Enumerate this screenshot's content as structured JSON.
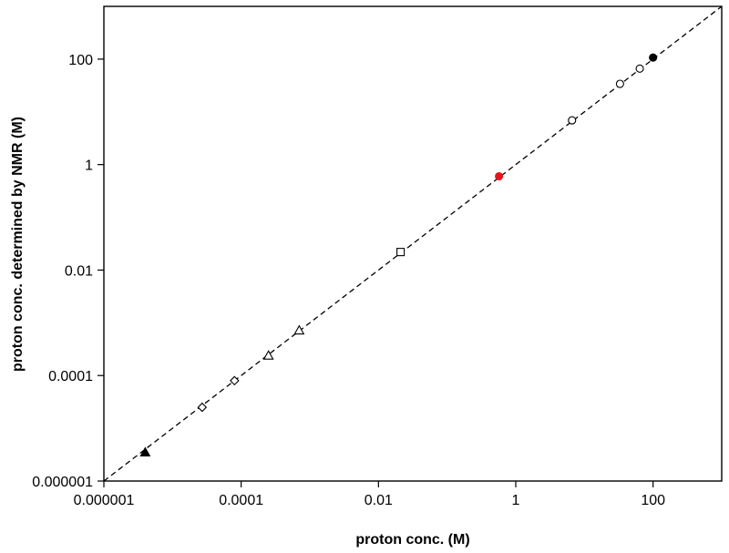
{
  "chart_data": {
    "type": "scatter",
    "title": "",
    "xlabel": "proton conc. (M)",
    "ylabel": "proton conc. determined by NMR (M)",
    "xscale": "log",
    "yscale": "log",
    "xlim": [
      1e-06,
      1000
    ],
    "ylim": [
      1e-06,
      1000
    ],
    "grid": false,
    "legend": "none",
    "xticks": [
      {
        "value": 1e-06,
        "label": "0.000001"
      },
      {
        "value": 0.0001,
        "label": "0.0001"
      },
      {
        "value": 0.01,
        "label": "0.01"
      },
      {
        "value": 1,
        "label": "1"
      },
      {
        "value": 100,
        "label": "100"
      }
    ],
    "yticks": [
      {
        "value": 1e-06,
        "label": "0.000001"
      },
      {
        "value": 0.0001,
        "label": "0.0001"
      },
      {
        "value": 0.01,
        "label": "0.01"
      },
      {
        "value": 1,
        "label": "1"
      },
      {
        "value": 100,
        "label": "100"
      }
    ],
    "reference_line": {
      "style": "dashed",
      "color": "#000000",
      "from": [
        1e-06,
        1e-06
      ],
      "to": [
        1000,
        1000
      ]
    },
    "series": [
      {
        "marker": "triangle-filled",
        "color": "#000000",
        "points": [
          [
            4e-06,
            3.5e-06
          ]
        ]
      },
      {
        "marker": "diamond-open",
        "color": "#000000",
        "points": [
          [
            2.7e-05,
            2.5e-05
          ],
          [
            8e-05,
            8e-05
          ]
        ]
      },
      {
        "marker": "triangle-open",
        "color": "#000000",
        "points": [
          [
            0.00025,
            0.00024
          ],
          [
            0.0007,
            0.00072
          ]
        ]
      },
      {
        "marker": "square-open",
        "color": "#000000",
        "points": [
          [
            0.021,
            0.022
          ]
        ]
      },
      {
        "marker": "circle-filled",
        "color": "#e8141b",
        "points": [
          [
            0.57,
            0.6
          ]
        ]
      },
      {
        "marker": "circle-open",
        "color": "#000000",
        "points": [
          [
            6.6,
            6.9
          ],
          [
            33,
            34
          ],
          [
            64,
            66
          ]
        ]
      },
      {
        "marker": "circle-filled",
        "color": "#000000",
        "points": [
          [
            100,
            107
          ]
        ]
      }
    ]
  }
}
